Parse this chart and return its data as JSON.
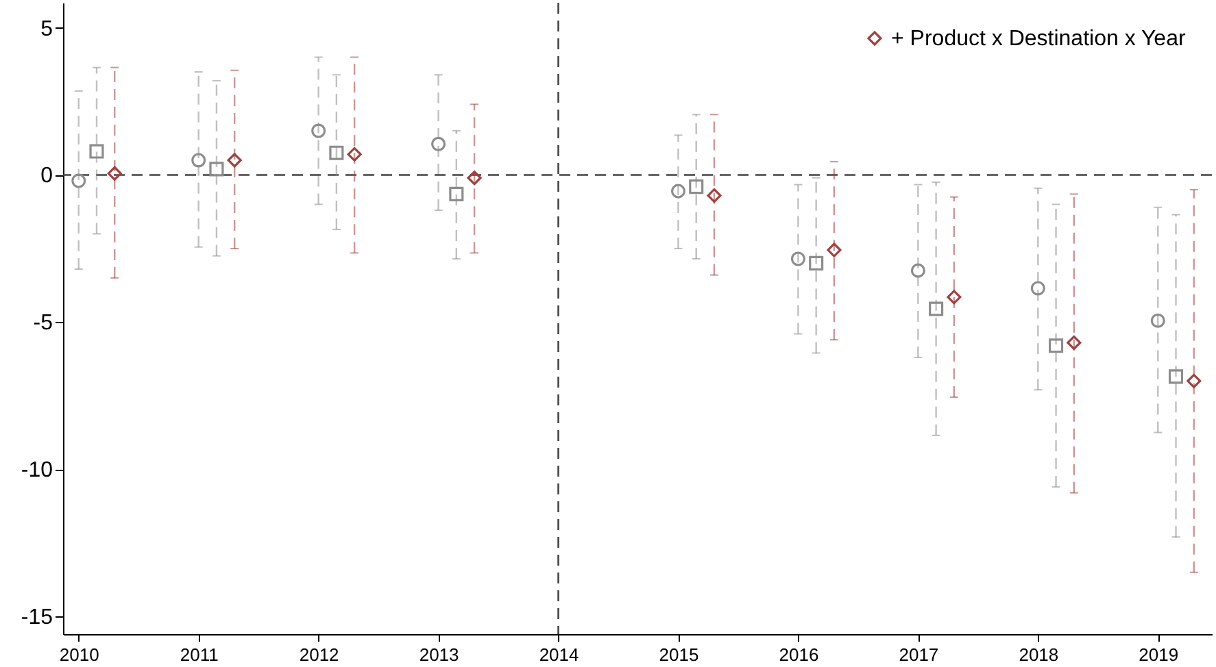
{
  "chart_data": {
    "type": "scatter",
    "xlim": [
      2009.87,
      2019.45
    ],
    "ylim": [
      -15.6,
      5.85
    ],
    "xticks": [
      2010,
      2011,
      2012,
      2013,
      2014,
      2015,
      2016,
      2017,
      2018,
      2019
    ],
    "yticks": [
      -15,
      -10,
      -5,
      0,
      5
    ],
    "grid": false,
    "legend": "top right",
    "line_style": "dashed",
    "ref_lines": [
      {
        "axis": "y",
        "value": 0,
        "line_style": "dashed"
      },
      {
        "axis": "x",
        "value": 2014,
        "line_style": "dashed"
      }
    ],
    "series": [
      {
        "color": "#8c8c8c",
        "marker": "circle",
        "x": [
          2010,
          2011,
          2012,
          2013,
          2015,
          2016,
          2017,
          2018,
          2019
        ],
        "values": [
          -0.2,
          0.5,
          1.5,
          1.05,
          -0.55,
          -2.85,
          -3.25,
          -3.85,
          -4.95
        ],
        "errors": [
          [
            -3.2,
            2.85
          ],
          [
            -2.45,
            3.5
          ],
          [
            -1.0,
            4.0
          ],
          [
            -1.2,
            3.4
          ],
          [
            -2.5,
            1.35
          ],
          [
            -5.4,
            -0.33
          ],
          [
            -6.2,
            -0.33
          ],
          [
            -7.3,
            -0.45
          ],
          [
            -8.75,
            -1.1
          ]
        ]
      },
      {
        "color": "#8c8c8c",
        "marker": "square",
        "x": [
          2010.15,
          2011.15,
          2012.15,
          2013.15,
          2015.15,
          2016.15,
          2017.15,
          2018.15,
          2019.15
        ],
        "values": [
          0.8,
          0.2,
          0.75,
          -0.65,
          -0.4,
          -3.0,
          -4.55,
          -5.8,
          -6.85
        ],
        "errors": [
          [
            -2.0,
            3.65
          ],
          [
            -2.75,
            3.2
          ],
          [
            -1.85,
            3.4
          ],
          [
            -2.85,
            1.5
          ],
          [
            -2.85,
            2.05
          ],
          [
            -6.05,
            -0.1
          ],
          [
            -8.85,
            -0.25
          ],
          [
            -10.6,
            -1.0
          ],
          [
            -12.3,
            -1.35
          ]
        ]
      },
      {
        "name": "+ Product x Destination x Year",
        "color": "#a0403f",
        "marker": "diamond",
        "x": [
          2010.3,
          2011.3,
          2012.3,
          2013.3,
          2015.3,
          2016.3,
          2017.3,
          2018.3,
          2019.3
        ],
        "values": [
          0.05,
          0.5,
          0.7,
          -0.1,
          -0.7,
          -2.55,
          -4.15,
          -5.7,
          -7.0
        ],
        "errors": [
          [
            -3.5,
            3.65
          ],
          [
            -2.5,
            3.55
          ],
          [
            -2.65,
            4.0
          ],
          [
            -2.65,
            2.4
          ],
          [
            -3.4,
            2.05
          ],
          [
            -5.6,
            0.45
          ],
          [
            -7.55,
            -0.75
          ],
          [
            -10.8,
            -0.65
          ],
          [
            -13.5,
            -0.5
          ]
        ]
      }
    ]
  }
}
